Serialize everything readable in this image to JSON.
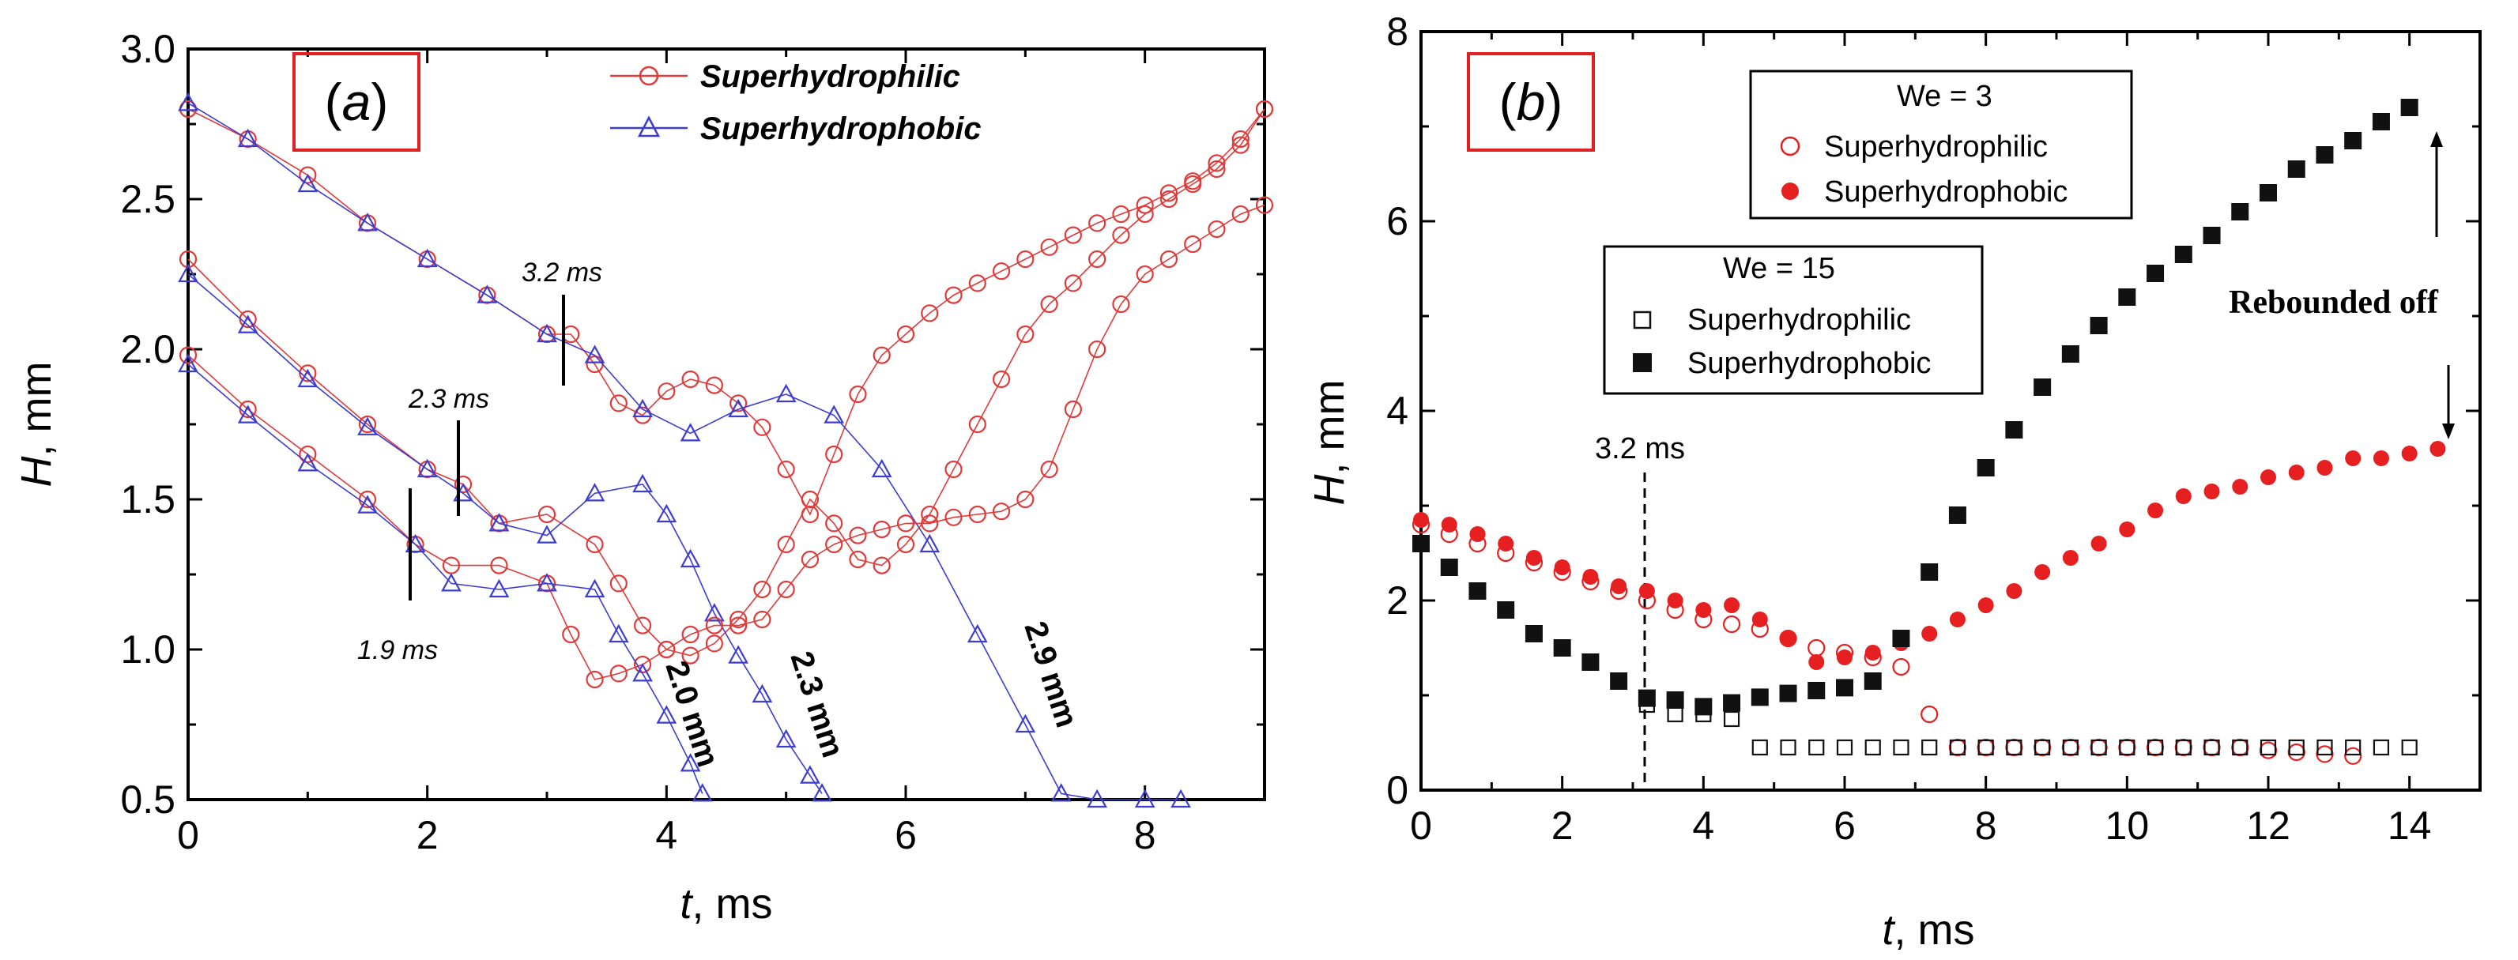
{
  "chart_data": [
    {
      "type": "scatter",
      "panel_label_open": "(",
      "panel_label_letter": "a",
      "panel_label_close": ")",
      "xlabel_var": "t",
      "xlabel_unit": ", ms",
      "ylabel_var": "H",
      "ylabel_unit": ", mm",
      "xlim": [
        0,
        9
      ],
      "ylim": [
        0.5,
        3.0
      ],
      "xticks": [
        0,
        2,
        4,
        6,
        8
      ],
      "yticks": [
        0.5,
        1.0,
        1.5,
        2.0,
        2.5,
        3.0
      ],
      "ytick_labels": [
        "0.5",
        "1.0",
        "1.5",
        "2.0",
        "2.5",
        "3.0"
      ],
      "legend": [
        "Superhydrophilic",
        "Superhydrophobic"
      ],
      "series_colors": [
        "#e03a3a",
        "#3c3cd0"
      ],
      "series": [
        {
          "name": "Superhydrophilic",
          "group": "2.9 mm",
          "x": [
            0,
            0.5,
            1,
            1.5,
            2,
            2.5,
            3,
            3.2,
            3.4,
            3.6,
            3.8,
            4.0,
            4.2,
            4.4,
            4.6,
            4.8,
            5.0,
            5.2,
            5.4,
            5.6,
            5.8,
            6.0,
            6.2,
            6.4,
            6.6,
            6.8,
            7.0,
            7.2,
            7.4,
            7.6,
            7.8,
            8.0,
            8.2,
            8.4,
            8.6,
            8.8,
            9.0
          ],
          "y": [
            2.8,
            2.7,
            2.58,
            2.42,
            2.3,
            2.18,
            2.05,
            2.05,
            1.95,
            1.82,
            1.78,
            1.86,
            1.9,
            1.88,
            1.82,
            1.74,
            1.6,
            1.45,
            1.65,
            1.85,
            1.98,
            2.05,
            2.12,
            2.18,
            2.22,
            2.26,
            2.3,
            2.34,
            2.38,
            2.42,
            2.45,
            2.48,
            2.52,
            2.56,
            2.62,
            2.7,
            2.8
          ]
        },
        {
          "name": "Superhydrophobic",
          "group": "2.9 mm",
          "x": [
            0,
            0.5,
            1,
            1.5,
            2,
            2.5,
            3,
            3.4,
            3.8,
            4.2,
            4.6,
            5.0,
            5.4,
            5.8,
            6.2,
            6.6,
            7.0,
            7.3,
            7.6,
            8.0,
            8.3
          ],
          "y": [
            2.82,
            2.7,
            2.55,
            2.42,
            2.3,
            2.18,
            2.05,
            1.98,
            1.8,
            1.72,
            1.8,
            1.85,
            1.78,
            1.6,
            1.35,
            1.05,
            0.75,
            0.52,
            0.5,
            0.5,
            0.5
          ]
        },
        {
          "name": "Superhydrophilic",
          "group": "2.3 mm",
          "x": [
            0,
            0.5,
            1,
            1.5,
            2,
            2.3,
            2.6,
            3.0,
            3.4,
            3.6,
            3.8,
            4.0,
            4.2,
            4.4,
            4.6,
            4.8,
            5.0,
            5.2,
            5.4,
            5.6,
            5.8,
            6.0,
            6.2,
            6.4,
            6.6,
            6.8,
            7.0,
            7.2,
            7.4,
            7.6,
            7.8,
            8.0,
            8.2,
            8.4,
            8.6,
            8.8,
            9.0
          ],
          "y": [
            2.3,
            2.1,
            1.92,
            1.75,
            1.6,
            1.55,
            1.42,
            1.45,
            1.35,
            1.22,
            1.08,
            1.0,
            0.98,
            1.02,
            1.1,
            1.2,
            1.35,
            1.5,
            1.42,
            1.3,
            1.28,
            1.35,
            1.45,
            1.6,
            1.75,
            1.9,
            2.05,
            2.15,
            2.22,
            2.3,
            2.38,
            2.45,
            2.5,
            2.55,
            2.6,
            2.68,
            2.8
          ]
        },
        {
          "name": "Superhydrophobic",
          "group": "2.3 mm",
          "x": [
            0,
            0.5,
            1,
            1.5,
            2,
            2.3,
            2.6,
            3.0,
            3.4,
            3.8,
            4.0,
            4.2,
            4.4,
            4.6,
            4.8,
            5.0,
            5.2,
            5.3
          ],
          "y": [
            2.25,
            2.08,
            1.9,
            1.74,
            1.6,
            1.52,
            1.42,
            1.38,
            1.52,
            1.55,
            1.45,
            1.3,
            1.12,
            0.98,
            0.85,
            0.7,
            0.58,
            0.52
          ]
        },
        {
          "name": "Superhydrophilic",
          "group": "2.0 mm",
          "x": [
            0,
            0.5,
            1,
            1.5,
            1.9,
            2.2,
            2.6,
            3.0,
            3.2,
            3.4,
            3.6,
            3.8,
            4.0,
            4.2,
            4.4,
            4.6,
            4.8,
            5.0,
            5.2,
            5.4,
            5.6,
            5.8,
            6.0,
            6.2,
            6.4,
            6.6,
            6.8,
            7.0,
            7.2,
            7.4,
            7.6,
            7.8,
            8.0,
            8.2,
            8.4,
            8.6,
            8.8,
            9.0
          ],
          "y": [
            1.98,
            1.8,
            1.65,
            1.5,
            1.35,
            1.28,
            1.28,
            1.22,
            1.05,
            0.9,
            0.92,
            0.95,
            1.0,
            1.05,
            1.08,
            1.08,
            1.1,
            1.2,
            1.3,
            1.35,
            1.38,
            1.4,
            1.42,
            1.42,
            1.44,
            1.45,
            1.46,
            1.5,
            1.6,
            1.8,
            2.0,
            2.15,
            2.25,
            2.3,
            2.35,
            2.4,
            2.45,
            2.48
          ]
        },
        {
          "name": "Superhydrophobic",
          "group": "2.0 mm",
          "x": [
            0,
            0.5,
            1,
            1.5,
            1.9,
            2.2,
            2.6,
            3.0,
            3.4,
            3.6,
            3.8,
            4.0,
            4.2,
            4.3
          ],
          "y": [
            1.95,
            1.78,
            1.62,
            1.48,
            1.35,
            1.22,
            1.2,
            1.22,
            1.2,
            1.05,
            0.92,
            0.78,
            0.62,
            0.52
          ]
        }
      ],
      "annotations": [
        {
          "text": "3.2 ms",
          "x": 3.2,
          "y": 2.1
        },
        {
          "text": "2.3 ms",
          "x": 2.3,
          "y": 1.6
        },
        {
          "text": "1.9 ms",
          "x": 1.9,
          "y": 1.3
        },
        {
          "text": "2.0 mm"
        },
        {
          "text": "2.3 mm"
        },
        {
          "text": "2.9 mm"
        }
      ]
    },
    {
      "type": "scatter",
      "panel_label_open": "(",
      "panel_label_letter": "b",
      "panel_label_close": ")",
      "xlabel_var": "t",
      "xlabel_unit": ", ms",
      "ylabel_var": "H",
      "ylabel_unit": ", mm",
      "xlim": [
        0,
        15
      ],
      "ylim": [
        0,
        8
      ],
      "xticks": [
        0,
        2,
        4,
        6,
        8,
        10,
        12,
        14
      ],
      "yticks": [
        0,
        2,
        4,
        6,
        8
      ],
      "ytick_labels": [
        "0",
        "2",
        "4",
        "6",
        "8"
      ],
      "legend_groups": [
        {
          "title": "We = 3",
          "items": [
            "Superhydrophilic",
            "Superhydrophobic"
          ]
        },
        {
          "title": "We = 15",
          "items": [
            "Superhydrophilic",
            "Superhydrophobic"
          ]
        }
      ],
      "series_colors": [
        "#e62020",
        "#e62020",
        "#111111",
        "#111111"
      ],
      "series": [
        {
          "name": "We = 3 Superhydrophilic",
          "x": [
            0,
            0.4,
            0.8,
            1.2,
            1.6,
            2.0,
            2.4,
            2.8,
            3.2,
            3.6,
            4.0,
            4.4,
            4.8,
            5.2,
            5.6,
            6.0,
            6.4,
            6.8,
            7.2,
            7.6,
            8.0,
            8.4,
            8.8,
            9.2,
            9.6,
            10.0,
            10.4,
            10.8,
            11.2,
            11.6,
            12.0,
            12.4,
            12.8,
            13.2
          ],
          "y": [
            2.8,
            2.7,
            2.6,
            2.5,
            2.4,
            2.3,
            2.2,
            2.1,
            2.0,
            1.9,
            1.8,
            1.75,
            1.7,
            1.6,
            1.5,
            1.45,
            1.4,
            1.3,
            0.8,
            0.45,
            0.45,
            0.45,
            0.45,
            0.45,
            0.45,
            0.45,
            0.45,
            0.45,
            0.45,
            0.45,
            0.42,
            0.4,
            0.38,
            0.36
          ]
        },
        {
          "name": "We = 3 Superhydrophobic",
          "x": [
            0,
            0.4,
            0.8,
            1.2,
            1.6,
            2.0,
            2.4,
            2.8,
            3.2,
            3.6,
            4.0,
            4.4,
            4.8,
            5.2,
            5.6,
            6.0,
            6.4,
            6.8,
            7.2,
            7.6,
            8.0,
            8.4,
            8.8,
            9.2,
            9.6,
            10.0,
            10.4,
            10.8,
            11.2,
            11.6,
            12.0,
            12.4,
            12.8,
            13.2,
            13.6,
            14.0,
            14.4
          ],
          "y": [
            2.85,
            2.8,
            2.7,
            2.6,
            2.45,
            2.35,
            2.25,
            2.15,
            2.1,
            2.0,
            1.9,
            1.95,
            1.8,
            1.6,
            1.35,
            1.4,
            1.45,
            1.55,
            1.65,
            1.8,
            1.95,
            2.1,
            2.3,
            2.45,
            2.6,
            2.75,
            2.95,
            3.1,
            3.15,
            3.2,
            3.3,
            3.35,
            3.4,
            3.5,
            3.5,
            3.55,
            3.6
          ]
        },
        {
          "name": "We = 15 Superhydrophilic",
          "x": [
            3.2,
            3.6,
            4.0,
            4.4,
            4.8,
            5.2,
            5.6,
            6.0,
            6.4,
            6.8,
            7.2,
            7.6,
            8.0,
            8.4,
            8.8,
            9.2,
            9.6,
            10.0,
            10.4,
            10.8,
            11.2,
            11.6,
            12.0,
            12.4,
            12.8,
            13.2,
            13.6,
            14.0
          ],
          "y": [
            0.9,
            0.8,
            0.8,
            0.75,
            0.45,
            0.45,
            0.45,
            0.45,
            0.45,
            0.45,
            0.45,
            0.45,
            0.45,
            0.45,
            0.45,
            0.45,
            0.45,
            0.45,
            0.45,
            0.45,
            0.45,
            0.45,
            0.45,
            0.45,
            0.45,
            0.45,
            0.45,
            0.45
          ]
        },
        {
          "name": "We = 15 Superhydrophobic",
          "x": [
            0,
            0.4,
            0.8,
            1.2,
            1.6,
            2.0,
            2.4,
            2.8,
            3.2,
            3.6,
            4.0,
            4.4,
            4.8,
            5.2,
            5.6,
            6.0,
            6.4,
            6.8,
            7.2,
            7.6,
            8.0,
            8.4,
            8.8,
            9.2,
            9.6,
            10.0,
            10.4,
            10.8,
            11.2,
            11.6,
            12.0,
            12.4,
            12.8,
            13.2,
            13.6,
            14.0
          ],
          "y": [
            2.6,
            2.35,
            2.1,
            1.9,
            1.65,
            1.5,
            1.35,
            1.15,
            0.97,
            0.95,
            0.88,
            0.92,
            0.98,
            1.02,
            1.05,
            1.08,
            1.15,
            1.6,
            2.3,
            2.9,
            3.4,
            3.8,
            4.25,
            4.6,
            4.9,
            5.2,
            5.45,
            5.65,
            5.85,
            6.1,
            6.3,
            6.55,
            6.7,
            6.85,
            7.05,
            7.2
          ]
        }
      ],
      "annotations": [
        {
          "text": "3.2 ms",
          "x": 3.2
        },
        {
          "text": "Rebounded off"
        }
      ]
    }
  ]
}
